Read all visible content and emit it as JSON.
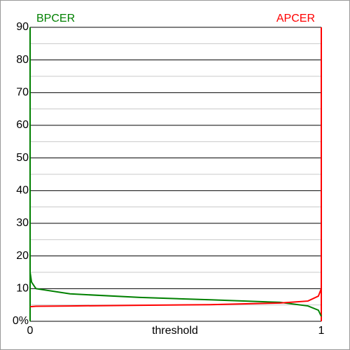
{
  "chart_data": {
    "type": "line",
    "x_label": "threshold",
    "xlim": [
      0,
      1
    ],
    "xticks": [
      0,
      1
    ],
    "ylim": [
      0,
      90
    ],
    "yticks": [
      {
        "value": 0,
        "label": "0%"
      },
      10,
      20,
      30,
      40,
      50,
      60,
      70,
      80,
      90
    ],
    "grid": true,
    "x": [
      0,
      0.005,
      0.02,
      0.137,
      0.377,
      0.618,
      0.858,
      0.954,
      0.99,
      1
    ],
    "series": [
      {
        "name": "BPCER",
        "color": "#008000",
        "values": [
          15,
          12,
          10,
          8.4,
          7.3,
          6.6,
          5.8,
          4.7,
          3.4,
          1.5
        ]
      },
      {
        "name": "APCER",
        "color": "#ff0000",
        "values": [
          4.5,
          4.5,
          4.6,
          4.7,
          4.9,
          5.1,
          5.6,
          6.2,
          7.7,
          10
        ]
      }
    ]
  }
}
